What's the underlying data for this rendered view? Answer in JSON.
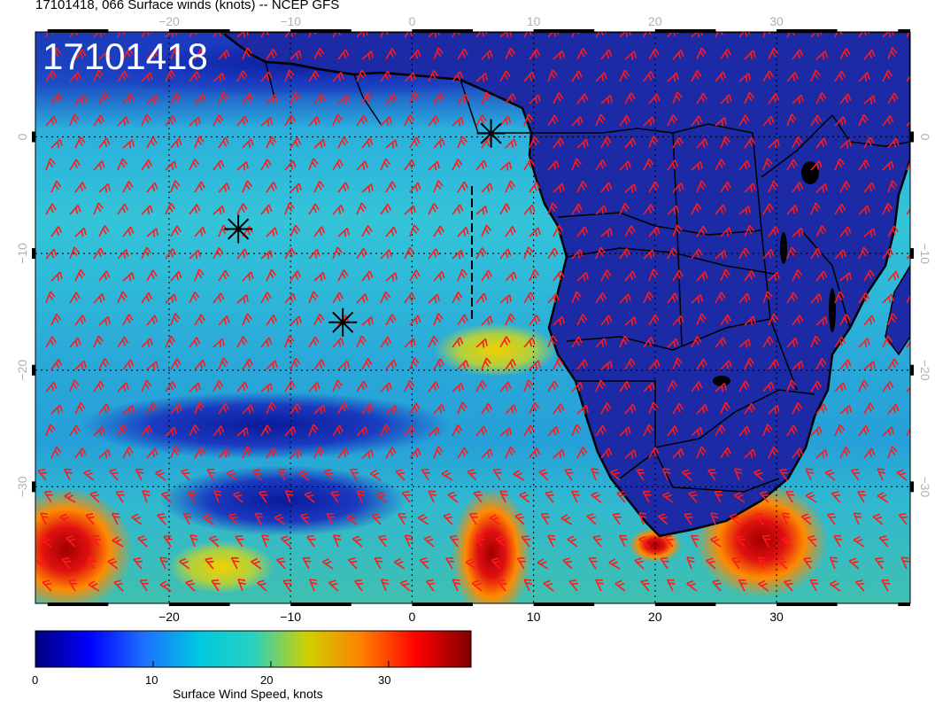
{
  "header": {
    "title": "17101418, 066 Surface winds (knots) -- NCEP GFS",
    "stamp": "17101418"
  },
  "map": {
    "lon_range": [
      -31,
      41
    ],
    "lat_range": [
      9,
      -40
    ],
    "lon_ticks_bottom": [
      -20,
      -10,
      0,
      10,
      20,
      30
    ],
    "lon_tick_labels_bottom": [
      "−20",
      "−10",
      "0",
      "10",
      "20",
      "30"
    ],
    "lon_ticks_top": [
      -20,
      -10,
      0,
      10,
      20,
      30
    ],
    "lon_tick_labels_top": [
      "−20",
      "−10",
      "0",
      "10",
      "20",
      "30"
    ],
    "lat_ticks": [
      0,
      -10,
      -20,
      -30
    ],
    "lat_tick_labels": [
      "0",
      "−10",
      "−20",
      "−30"
    ],
    "grid": true,
    "colors": {
      "ocean_low": "#1a33b0",
      "ocean_mid": "#2fb8e0",
      "land": "#1c2aa6",
      "jet_high": "#d81010",
      "barb": "#ff1a1a",
      "coast": "#000000"
    }
  },
  "markers": [
    {
      "name": "star-marker",
      "lon": 6.5,
      "lat": 0.3
    },
    {
      "name": "star-marker",
      "lon": -14.3,
      "lat": -7.9
    },
    {
      "name": "star-marker",
      "lon": -5.7,
      "lat": -15.9
    }
  ],
  "colorbar": {
    "title": "Surface Wind Speed, knots",
    "range": [
      0,
      37
    ],
    "ticks": [
      0,
      10,
      20,
      30
    ],
    "tick_labels": [
      "0",
      "10",
      "20",
      "30"
    ],
    "colors": [
      "#00007f",
      "#0000ff",
      "#1e70ff",
      "#00c8e0",
      "#2ad0c0",
      "#d0d000",
      "#ff7f00",
      "#ff0000",
      "#7f0000"
    ]
  }
}
